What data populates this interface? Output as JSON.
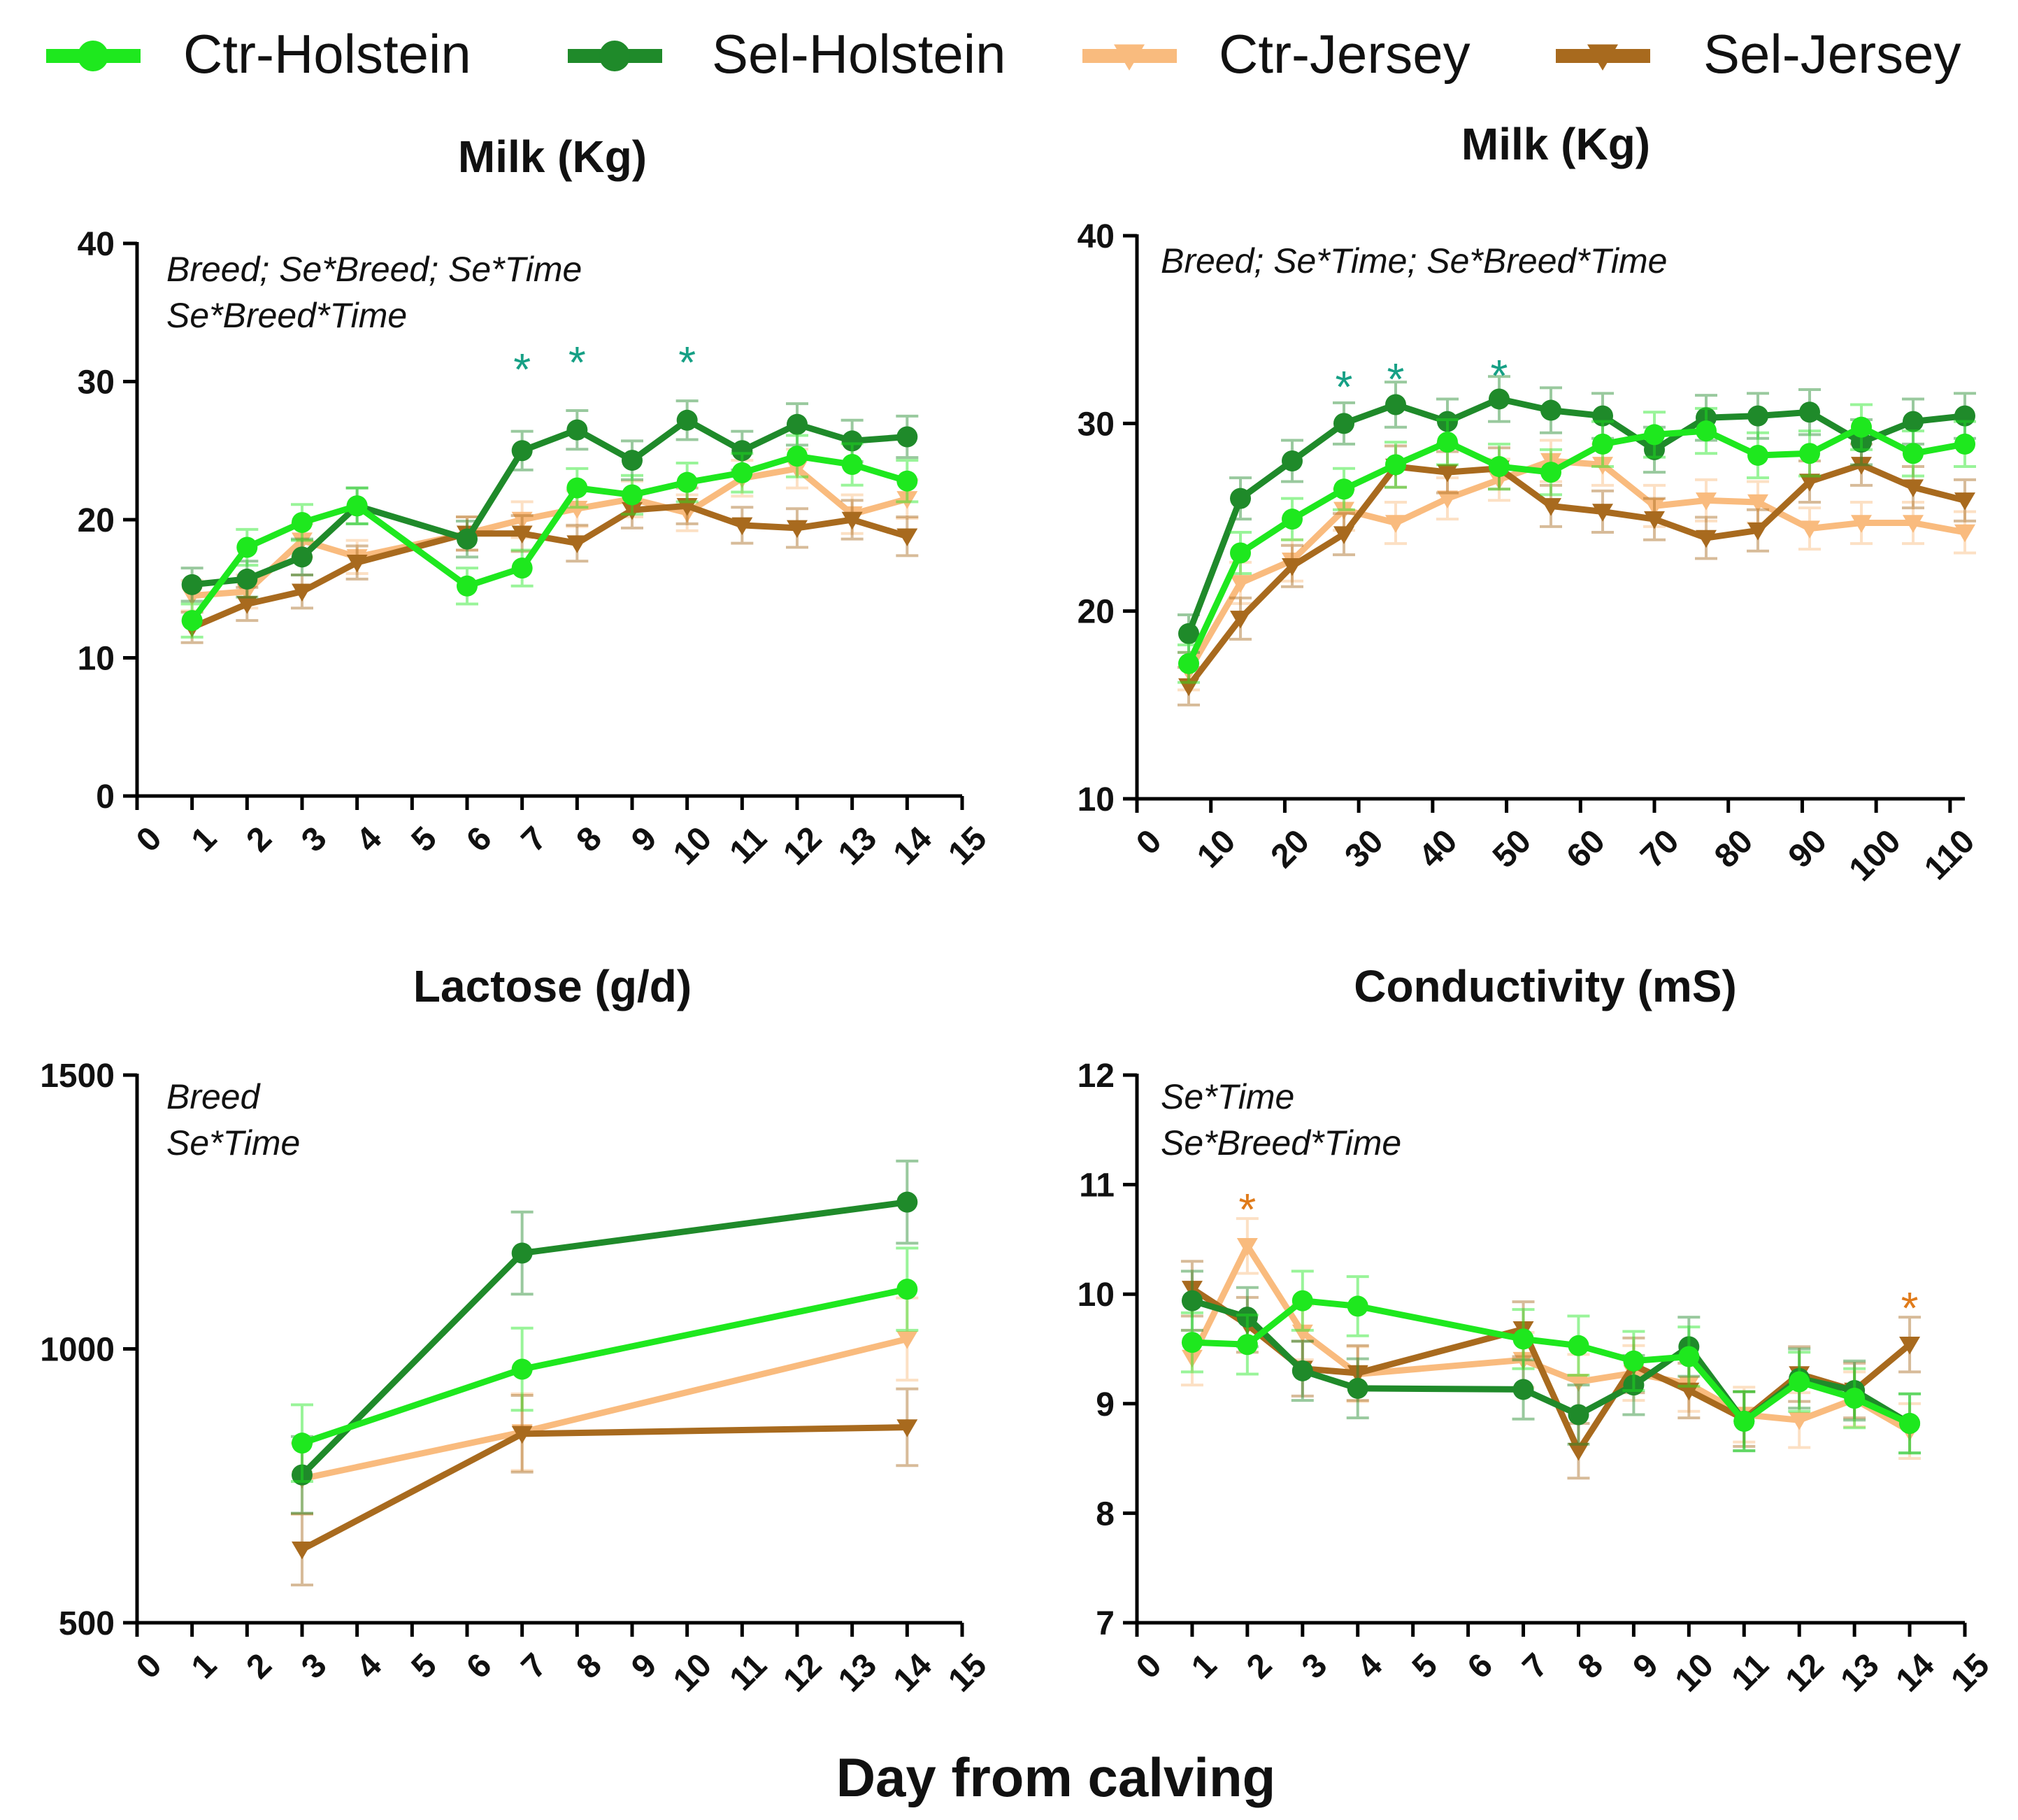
{
  "figure": {
    "xlabel": "Day from calving",
    "legend": [
      {
        "name": "Ctr-Holstein",
        "color": "#1ee81e",
        "marker": "circle"
      },
      {
        "name": "Sel-Holstein",
        "color": "#1f8a2a",
        "marker": "circle"
      },
      {
        "name": "Ctr-Jersey",
        "color": "#f9bb7e",
        "marker": "triangle-down"
      },
      {
        "name": "Sel-Jersey",
        "color": "#a86a1e",
        "marker": "triangle-down"
      }
    ],
    "significance_colors": {
      "teal": "#16a085",
      "orange": "#e07b1a"
    }
  },
  "chart_data": [
    {
      "id": "milk-daily",
      "type": "line",
      "title": "Milk (Kg)",
      "annotation": [
        "Breed; Se*Breed; Se*Time",
        "Se*Breed*Time"
      ],
      "xlim": [
        0,
        15
      ],
      "xticks": [
        0,
        1,
        2,
        3,
        4,
        5,
        6,
        7,
        8,
        9,
        10,
        11,
        12,
        13,
        14,
        15
      ],
      "ylim": [
        0,
        40
      ],
      "yticks": [
        0,
        10,
        20,
        30,
        40
      ],
      "series": [
        {
          "name": "Ctr-Holstein",
          "x": [
            1,
            2,
            3,
            4,
            6,
            7,
            8,
            9,
            10,
            11,
            12,
            13,
            14
          ],
          "y": [
            12.7,
            18.0,
            19.8,
            21.0,
            15.2,
            16.5,
            22.3,
            21.8,
            22.7,
            23.4,
            24.6,
            24.0,
            22.8
          ],
          "err": [
            1.2,
            1.3,
            1.3,
            1.3,
            1.3,
            1.3,
            1.4,
            1.4,
            1.4,
            1.4,
            1.5,
            1.5,
            1.5
          ]
        },
        {
          "name": "Sel-Holstein",
          "x": [
            1,
            2,
            3,
            4,
            6,
            7,
            8,
            9,
            10,
            11,
            12,
            13,
            14
          ],
          "y": [
            15.3,
            15.7,
            17.3,
            21.0,
            18.6,
            25.0,
            26.5,
            24.3,
            27.2,
            25.0,
            26.9,
            25.7,
            26.0
          ],
          "err": [
            1.2,
            1.3,
            1.3,
            1.3,
            1.3,
            1.4,
            1.4,
            1.4,
            1.4,
            1.4,
            1.5,
            1.5,
            1.5
          ]
        },
        {
          "name": "Ctr-Jersey",
          "x": [
            1,
            2,
            3,
            4,
            6,
            7,
            8,
            9,
            10,
            11,
            12,
            13,
            14
          ],
          "y": [
            14.5,
            14.8,
            18.5,
            17.3,
            19.0,
            20.0,
            20.8,
            21.5,
            20.5,
            23.0,
            23.7,
            20.4,
            21.5
          ],
          "err": [
            1.1,
            1.2,
            1.2,
            1.2,
            1.2,
            1.3,
            1.3,
            1.3,
            1.3,
            1.3,
            1.4,
            1.4,
            1.4
          ]
        },
        {
          "name": "Sel-Jersey",
          "x": [
            1,
            2,
            3,
            4,
            6,
            7,
            8,
            9,
            10,
            11,
            12,
            13,
            14
          ],
          "y": [
            12.2,
            13.9,
            14.8,
            16.9,
            19.0,
            19.0,
            18.3,
            20.7,
            21.0,
            19.6,
            19.4,
            20.0,
            18.8
          ],
          "err": [
            1.1,
            1.2,
            1.2,
            1.2,
            1.2,
            1.3,
            1.3,
            1.3,
            1.3,
            1.3,
            1.4,
            1.4,
            1.4
          ]
        }
      ],
      "stars": [
        {
          "x": 7,
          "y": 31.5,
          "label": "*",
          "color": "teal"
        },
        {
          "x": 8,
          "y": 32.0,
          "label": "*",
          "color": "teal"
        },
        {
          "x": 10,
          "y": 32.0,
          "label": "*",
          "color": "teal"
        }
      ]
    },
    {
      "id": "milk-weekly",
      "type": "line",
      "title": "Milk (Kg)",
      "annotation": [
        "Breed; Se*Time; Se*Breed*Time"
      ],
      "xlim": [
        0,
        112
      ],
      "xticks": [
        0,
        10,
        20,
        30,
        40,
        50,
        60,
        70,
        80,
        90,
        100,
        110
      ],
      "ylim": [
        10,
        40
      ],
      "yticks": [
        10,
        20,
        30,
        40
      ],
      "series": [
        {
          "name": "Ctr-Holstein",
          "x": [
            7,
            14,
            21,
            28,
            35,
            42,
            49,
            56,
            63,
            70,
            77,
            84,
            91,
            98,
            105,
            112
          ],
          "y": [
            17.2,
            23.1,
            24.9,
            26.5,
            27.8,
            29.0,
            27.7,
            27.4,
            28.9,
            29.4,
            29.6,
            28.3,
            28.4,
            29.8,
            28.4,
            28.9
          ],
          "err": [
            1.0,
            1.1,
            1.1,
            1.1,
            1.2,
            1.2,
            1.2,
            1.2,
            1.2,
            1.2,
            1.2,
            1.2,
            1.2,
            1.2,
            1.2,
            1.2
          ]
        },
        {
          "name": "Sel-Holstein",
          "x": [
            7,
            14,
            21,
            28,
            35,
            42,
            49,
            56,
            63,
            70,
            77,
            84,
            91,
            98,
            105,
            112
          ],
          "y": [
            18.8,
            26.0,
            28.0,
            30.0,
            31.0,
            30.1,
            31.3,
            30.7,
            30.4,
            28.6,
            30.3,
            30.4,
            30.6,
            29.0,
            30.1,
            30.4
          ],
          "err": [
            1.0,
            1.1,
            1.1,
            1.1,
            1.2,
            1.2,
            1.2,
            1.2,
            1.2,
            1.2,
            1.2,
            1.2,
            1.2,
            1.2,
            1.2,
            1.2
          ]
        },
        {
          "name": "Ctr-Jersey",
          "x": [
            7,
            14,
            21,
            28,
            35,
            42,
            49,
            56,
            63,
            70,
            77,
            84,
            91,
            98,
            105,
            112
          ],
          "y": [
            16.8,
            21.5,
            22.7,
            25.4,
            24.7,
            26.0,
            27.0,
            28.0,
            27.8,
            25.6,
            25.9,
            25.8,
            24.4,
            24.7,
            24.7,
            24.2
          ],
          "err": [
            1.0,
            1.1,
            1.1,
            1.1,
            1.1,
            1.1,
            1.1,
            1.1,
            1.1,
            1.1,
            1.1,
            1.1,
            1.1,
            1.1,
            1.1,
            1.1
          ]
        },
        {
          "name": "Sel-Jersey",
          "x": [
            7,
            14,
            21,
            28,
            35,
            42,
            49,
            56,
            63,
            70,
            77,
            84,
            91,
            98,
            105,
            112
          ],
          "y": [
            16.0,
            19.6,
            22.4,
            24.1,
            27.7,
            27.4,
            27.6,
            25.6,
            25.3,
            24.9,
            23.9,
            24.3,
            26.9,
            27.8,
            26.6,
            25.9
          ],
          "err": [
            1.0,
            1.1,
            1.1,
            1.1,
            1.1,
            1.1,
            1.1,
            1.1,
            1.1,
            1.1,
            1.1,
            1.1,
            1.1,
            1.1,
            1.1,
            1.1
          ]
        }
      ],
      "stars": [
        {
          "x": 28,
          "y": 32.4,
          "label": "*",
          "color": "teal"
        },
        {
          "x": 35,
          "y": 32.8,
          "label": "*",
          "color": "teal"
        },
        {
          "x": 49,
          "y": 33.0,
          "label": "*",
          "color": "teal"
        }
      ]
    },
    {
      "id": "lactose",
      "type": "line",
      "title": "Lactose (g/d)",
      "annotation": [
        "Breed",
        "Se*Time"
      ],
      "xlim": [
        0,
        15
      ],
      "xticks": [
        0,
        1,
        2,
        3,
        4,
        5,
        6,
        7,
        8,
        9,
        10,
        11,
        12,
        13,
        14,
        15
      ],
      "ylim": [
        500,
        1500
      ],
      "yticks": [
        500,
        1000,
        1500
      ],
      "series": [
        {
          "name": "Ctr-Holstein",
          "x": [
            3,
            7,
            14
          ],
          "y": [
            828,
            963,
            1109
          ],
          "err": [
            70,
            75,
            75
          ]
        },
        {
          "name": "Sel-Holstein",
          "x": [
            3,
            7,
            14
          ],
          "y": [
            770,
            1175,
            1268
          ],
          "err": [
            70,
            75,
            75
          ]
        },
        {
          "name": "Ctr-Jersey",
          "x": [
            3,
            7,
            14
          ],
          "y": [
            763,
            848,
            1018
          ],
          "err": [
            65,
            70,
            75
          ]
        },
        {
          "name": "Sel-Jersey",
          "x": [
            3,
            7,
            14
          ],
          "y": [
            634,
            845,
            857
          ],
          "err": [
            65,
            70,
            70
          ]
        }
      ],
      "stars": []
    },
    {
      "id": "conductivity",
      "type": "line",
      "title": "Conductivity (mS)",
      "annotation": [
        "Se*Time",
        "Se*Breed*Time"
      ],
      "xlim": [
        0,
        15
      ],
      "xticks": [
        0,
        1,
        2,
        3,
        4,
        5,
        6,
        7,
        8,
        9,
        10,
        11,
        12,
        13,
        14,
        15
      ],
      "ylim": [
        7,
        12
      ],
      "yticks": [
        7,
        8,
        9,
        10,
        11,
        12
      ],
      "series": [
        {
          "name": "Ctr-Holstein",
          "x": [
            1,
            2,
            3,
            4,
            7,
            8,
            9,
            10,
            11,
            12,
            13,
            14
          ],
          "y": [
            9.56,
            9.54,
            9.94,
            9.89,
            9.59,
            9.53,
            9.39,
            9.43,
            8.84,
            9.2,
            9.05,
            8.82
          ],
          "err": [
            0.27,
            0.27,
            0.27,
            0.27,
            0.27,
            0.27,
            0.27,
            0.27,
            0.27,
            0.27,
            0.27,
            0.27
          ]
        },
        {
          "name": "Sel-Holstein",
          "x": [
            1,
            2,
            3,
            4,
            7,
            8,
            9,
            10,
            11,
            12,
            13,
            14
          ],
          "y": [
            9.94,
            9.79,
            9.3,
            9.14,
            9.13,
            8.9,
            9.17,
            9.52,
            8.84,
            9.23,
            9.12,
            8.82
          ],
          "err": [
            0.27,
            0.27,
            0.27,
            0.27,
            0.27,
            0.27,
            0.27,
            0.27,
            0.27,
            0.27,
            0.27,
            0.27
          ]
        },
        {
          "name": "Ctr-Jersey",
          "x": [
            1,
            2,
            3,
            4,
            7,
            8,
            9,
            10,
            11,
            12,
            13,
            14
          ],
          "y": [
            9.42,
            10.44,
            9.65,
            9.27,
            9.4,
            9.2,
            9.28,
            9.18,
            8.9,
            8.85,
            9.04,
            8.75
          ],
          "err": [
            0.25,
            0.25,
            0.25,
            0.25,
            0.25,
            0.25,
            0.25,
            0.25,
            0.25,
            0.25,
            0.25,
            0.25
          ]
        },
        {
          "name": "Sel-Jersey",
          "x": [
            1,
            2,
            3,
            4,
            7,
            8,
            9,
            10,
            11,
            12,
            13,
            14
          ],
          "y": [
            10.05,
            9.72,
            9.32,
            9.28,
            9.68,
            8.57,
            9.35,
            9.12,
            8.86,
            9.27,
            9.12,
            9.54
          ],
          "err": [
            0.25,
            0.25,
            0.25,
            0.25,
            0.25,
            0.25,
            0.25,
            0.25,
            0.25,
            0.25,
            0.25,
            0.25
          ]
        }
      ],
      "stars": [
        {
          "x": 2,
          "y": 10.85,
          "label": "*",
          "color": "orange"
        },
        {
          "x": 14,
          "y": 9.95,
          "label": "*",
          "color": "orange"
        }
      ]
    }
  ]
}
